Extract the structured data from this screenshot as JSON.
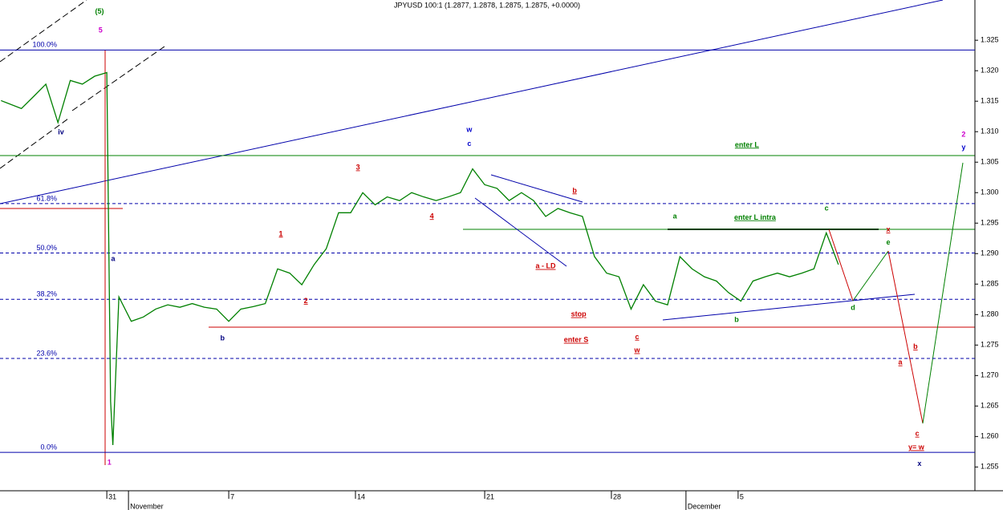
{
  "chart_data": {
    "type": "line",
    "title": "JPYUSD 100:1 (1.2877, 1.2878, 1.2875, 1.2875, +0.0000)",
    "ylim": [
      1.2511,
      1.3316
    ],
    "yticks": [
      1.255,
      {
        "value": 1.26,
        "label": "1.260"
      },
      1.265,
      {
        "value": 1.27,
        "label": "1.270"
      },
      1.275,
      {
        "value": 1.28,
        "label": "1.280"
      },
      1.285,
      {
        "value": 1.29,
        "label": "1.290"
      },
      1.295,
      {
        "value": 1.3,
        "label": "1.300"
      },
      1.305,
      {
        "value": 1.31,
        "label": "1.310"
      },
      1.315,
      {
        "value": 1.32,
        "label": "1.320"
      },
      1.325
    ],
    "xlim": [
      -4.24,
      34.46
    ],
    "xticks": [
      {
        "value": 0,
        "label": "31"
      },
      {
        "value": 4.84,
        "label": "7"
      },
      {
        "value": 9.87,
        "label": "14"
      },
      {
        "value": 15,
        "label": "21"
      },
      {
        "value": 20.03,
        "label": "28"
      },
      {
        "value": 25.06,
        "label": "5"
      }
    ],
    "months": [
      {
        "value": 0.86,
        "label": "November"
      },
      {
        "value": 22.99,
        "label": "December"
      }
    ],
    "series": [
      {
        "name": "JPYUSD",
        "color": "#008000",
        "x": [
          -4.2,
          -3.39,
          -2.9,
          -2.42,
          -1.94,
          -1.45,
          -0.97,
          -0.48,
          0,
          0.15,
          0.24,
          0.48,
          0.97,
          1.45,
          1.94,
          2.42,
          2.9,
          3.39,
          3.87,
          4.36,
          4.84,
          5.32,
          5.81,
          6.29,
          6.78,
          7.26,
          7.74,
          8.23,
          8.71,
          9.2,
          9.68,
          10.16,
          10.65,
          11.13,
          11.62,
          12.1,
          12.58,
          13.07,
          13.55,
          14.04,
          14.52,
          15,
          15.49,
          15.97,
          16.46,
          16.94,
          17.42,
          17.91,
          18.39,
          18.88,
          19.36,
          19.84,
          20.33,
          20.81,
          21.3,
          21.78,
          22.26,
          22.75,
          23.23,
          23.72,
          24.2,
          24.68,
          25.17,
          25.65,
          26.14,
          26.62,
          27.1,
          27.59,
          28.07,
          28.56,
          28.75,
          29.04
        ],
        "values": [
          1.3151,
          1.3138,
          1.3158,
          1.3178,
          1.3115,
          1.3184,
          1.3178,
          1.3191,
          1.3197,
          1.2658,
          1.2586,
          1.2829,
          1.2789,
          1.2796,
          1.2809,
          1.2816,
          1.2812,
          1.2818,
          1.2812,
          1.2809,
          1.2789,
          1.2809,
          1.2813,
          1.2818,
          1.2875,
          1.2868,
          1.2849,
          1.2882,
          1.2908,
          1.2967,
          1.2967,
          1.3,
          1.298,
          1.2993,
          1.2987,
          1.3,
          1.2993,
          1.2987,
          1.2993,
          1.3,
          1.3039,
          1.3013,
          1.3007,
          1.2987,
          1.3,
          1.2987,
          1.2961,
          1.2974,
          1.2967,
          1.2961,
          1.2895,
          1.2868,
          1.2862,
          1.2809,
          1.2849,
          1.2822,
          1.2816,
          1.2895,
          1.2875,
          1.2862,
          1.2855,
          1.2836,
          1.2822,
          1.2855,
          1.2862,
          1.2868,
          1.2862,
          1.2868,
          1.2875,
          1.2934,
          1.2914,
          1.2882
        ]
      }
    ],
    "fib_levels": [
      {
        "value": 1.3234,
        "label": "100.0%"
      },
      {
        "value": 1.2982,
        "label": "61.8%"
      },
      {
        "value": 1.2901,
        "label": "50.0%"
      },
      {
        "value": 1.2825,
        "label": "38.2%"
      },
      {
        "value": 1.2728,
        "label": "23.6%"
      },
      {
        "value": 1.2574,
        "label": "0.0%"
      }
    ],
    "annotations": [
      {
        "text": "(5)",
        "x": -0.29,
        "y": 1.3297,
        "color": "#008000"
      },
      {
        "text": "5",
        "x": -0.25,
        "y": 1.3266,
        "color": "#cc00cc"
      },
      {
        "text": "iv",
        "x": -1.82,
        "y": 1.3099,
        "color": "#000080"
      },
      {
        "text": "a",
        "x": 0.25,
        "y": 1.2891,
        "color": "#000080"
      },
      {
        "text": "1",
        "x": 0.1,
        "y": 1.2557,
        "color": "#cc00cc"
      },
      {
        "text": "b",
        "x": 4.59,
        "y": 1.2761,
        "color": "#000080"
      },
      {
        "text": "1",
        "x": 6.91,
        "y": 1.2932,
        "color": "#cc0000",
        "underline": true
      },
      {
        "text": "2",
        "x": 7.9,
        "y": 1.2822,
        "color": "#cc0000",
        "underline": true
      },
      {
        "text": "3",
        "x": 9.97,
        "y": 1.3041,
        "color": "#cc0000",
        "underline": true
      },
      {
        "text": "4",
        "x": 12.9,
        "y": 1.2961,
        "color": "#cc0000",
        "underline": true
      },
      {
        "text": "w",
        "x": 14.39,
        "y": 1.3103,
        "color": "#0000cc"
      },
      {
        "text": "c",
        "x": 14.39,
        "y": 1.308,
        "color": "#0000cc"
      },
      {
        "text": "b",
        "x": 18.57,
        "y": 1.3003,
        "color": "#cc0000",
        "underline": true
      },
      {
        "text": "a - LD",
        "x": 17.42,
        "y": 1.2879,
        "color": "#cc0000",
        "underline": true
      },
      {
        "text": "stop",
        "x": 18.73,
        "y": 1.28,
        "color": "#cc0000",
        "underline": true
      },
      {
        "text": "enter S",
        "x": 18.63,
        "y": 1.2758,
        "color": "#cc0000",
        "underline": true
      },
      {
        "text": "c",
        "x": 21.05,
        "y": 1.2763,
        "color": "#cc0000",
        "underline": true
      },
      {
        "text": "w",
        "x": 21.05,
        "y": 1.2741,
        "color": "#cc0000",
        "underline": true
      },
      {
        "text": "a",
        "x": 22.55,
        "y": 1.2961,
        "color": "#008000"
      },
      {
        "text": "enter L intra",
        "x": 25.73,
        "y": 1.2959,
        "color": "#008000",
        "underline": true
      },
      {
        "text": "enter L",
        "x": 25.41,
        "y": 1.3078,
        "color": "#008000",
        "underline": true
      },
      {
        "text": "b",
        "x": 25,
        "y": 1.2791,
        "color": "#008000"
      },
      {
        "text": "c",
        "x": 28.57,
        "y": 1.2974,
        "color": "#008000"
      },
      {
        "text": "d",
        "x": 29.62,
        "y": 1.2811,
        "color": "#008000"
      },
      {
        "text": "e",
        "x": 31.02,
        "y": 1.2918,
        "color": "#008000"
      },
      {
        "text": "x",
        "x": 31.02,
        "y": 1.2939,
        "color": "#cc0000",
        "underline": true
      },
      {
        "text": "a",
        "x": 31.5,
        "y": 1.2721,
        "color": "#cc0000",
        "underline": true
      },
      {
        "text": "b",
        "x": 32.1,
        "y": 1.2747,
        "color": "#cc0000",
        "underline": true
      },
      {
        "text": "c",
        "x": 32.17,
        "y": 1.2604,
        "color": "#cc0000",
        "underline": true
      },
      {
        "text": "y= w",
        "x": 32.13,
        "y": 1.2582,
        "color": "#cc0000",
        "underline": true
      },
      {
        "text": "x",
        "x": 32.26,
        "y": 1.2555,
        "color": "#000080"
      },
      {
        "text": "2",
        "x": 34.01,
        "y": 1.3095,
        "color": "#cc00cc"
      },
      {
        "text": "y",
        "x": 34.01,
        "y": 1.3074,
        "color": "#0000cc"
      }
    ]
  }
}
